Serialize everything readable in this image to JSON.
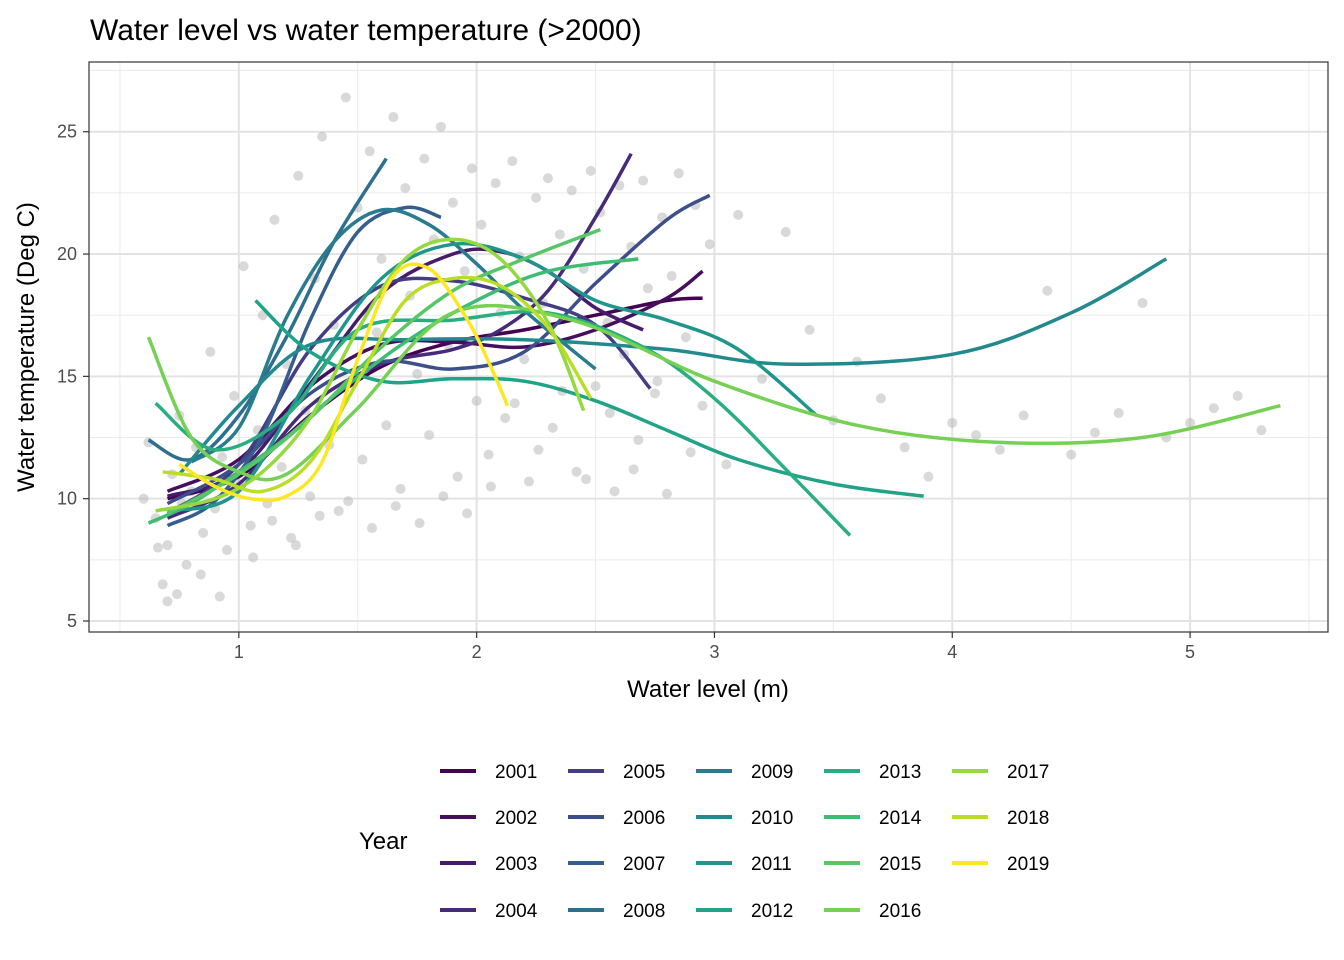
{
  "chart_data": {
    "type": "scatter",
    "title": "Water level vs water temperature (>2000)",
    "xlabel": "Water level (m)",
    "ylabel": "Water temperature (Deg C)",
    "xlim": [
      0.37,
      5.58
    ],
    "ylim": [
      4.55,
      27.85
    ],
    "x_ticks": [
      "1",
      "2",
      "3",
      "4",
      "5"
    ],
    "y_ticks": [
      "5",
      "10",
      "15",
      "20",
      "25"
    ],
    "grid": true,
    "legend_title": "Year",
    "legend_position": "bottom",
    "point_color": "#b3b3b3",
    "points": [
      [
        0.65,
        9.2
      ],
      [
        0.68,
        6.5
      ],
      [
        0.7,
        8.1
      ],
      [
        0.72,
        11.0
      ],
      [
        0.75,
        13.4
      ],
      [
        0.78,
        7.3
      ],
      [
        0.8,
        10.3
      ],
      [
        0.82,
        12.1
      ],
      [
        0.85,
        8.6
      ],
      [
        0.88,
        16.0
      ],
      [
        0.9,
        9.6
      ],
      [
        0.93,
        11.7
      ],
      [
        0.95,
        7.9
      ],
      [
        0.98,
        14.2
      ],
      [
        1.0,
        10.6
      ],
      [
        1.02,
        19.5
      ],
      [
        1.05,
        8.9
      ],
      [
        1.08,
        12.8
      ],
      [
        1.1,
        17.5
      ],
      [
        1.12,
        9.8
      ],
      [
        1.15,
        21.4
      ],
      [
        1.18,
        11.3
      ],
      [
        1.2,
        15.5
      ],
      [
        1.22,
        8.4
      ],
      [
        1.25,
        23.2
      ],
      [
        1.28,
        13.6
      ],
      [
        1.3,
        10.1
      ],
      [
        1.32,
        19.0
      ],
      [
        1.35,
        24.8
      ],
      [
        1.38,
        12.2
      ],
      [
        1.4,
        17.1
      ],
      [
        1.42,
        9.5
      ],
      [
        1.45,
        26.4
      ],
      [
        1.48,
        14.7
      ],
      [
        1.5,
        21.9
      ],
      [
        1.52,
        11.6
      ],
      [
        1.55,
        24.2
      ],
      [
        1.58,
        16.8
      ],
      [
        1.6,
        19.8
      ],
      [
        1.62,
        13.0
      ],
      [
        1.65,
        25.6
      ],
      [
        1.68,
        10.4
      ],
      [
        1.7,
        22.7
      ],
      [
        1.72,
        18.3
      ],
      [
        1.75,
        15.1
      ],
      [
        1.78,
        23.9
      ],
      [
        1.8,
        12.6
      ],
      [
        1.82,
        20.6
      ],
      [
        1.85,
        25.2
      ],
      [
        1.88,
        16.3
      ],
      [
        1.9,
        22.1
      ],
      [
        1.92,
        10.9
      ],
      [
        1.95,
        19.3
      ],
      [
        1.98,
        23.5
      ],
      [
        2.0,
        14.0
      ],
      [
        2.02,
        21.2
      ],
      [
        2.05,
        11.8
      ],
      [
        2.08,
        22.9
      ],
      [
        2.1,
        17.6
      ],
      [
        2.12,
        13.3
      ],
      [
        2.15,
        23.8
      ],
      [
        2.18,
        19.9
      ],
      [
        2.2,
        15.7
      ],
      [
        2.22,
        10.7
      ],
      [
        2.25,
        22.3
      ],
      [
        2.28,
        18.0
      ],
      [
        2.3,
        23.1
      ],
      [
        2.32,
        12.9
      ],
      [
        2.35,
        20.8
      ],
      [
        2.38,
        16.4
      ],
      [
        2.4,
        22.6
      ],
      [
        2.42,
        11.1
      ],
      [
        2.45,
        19.4
      ],
      [
        2.48,
        23.4
      ],
      [
        2.5,
        14.6
      ],
      [
        2.52,
        21.7
      ],
      [
        2.55,
        17.2
      ],
      [
        2.58,
        10.3
      ],
      [
        2.6,
        22.8
      ],
      [
        2.62,
        15.9
      ],
      [
        2.65,
        20.3
      ],
      [
        2.68,
        12.4
      ],
      [
        2.7,
        23.0
      ],
      [
        2.72,
        18.6
      ],
      [
        2.75,
        14.3
      ],
      [
        2.78,
        21.5
      ],
      [
        2.8,
        10.2
      ],
      [
        2.82,
        19.1
      ],
      [
        2.85,
        23.3
      ],
      [
        2.88,
        16.6
      ],
      [
        2.9,
        11.9
      ],
      [
        2.92,
        22.0
      ],
      [
        2.95,
        13.8
      ],
      [
        2.98,
        20.4
      ],
      [
        3.05,
        11.4
      ],
      [
        3.1,
        21.6
      ],
      [
        3.2,
        14.9
      ],
      [
        3.3,
        20.9
      ],
      [
        3.4,
        16.9
      ],
      [
        3.5,
        13.2
      ],
      [
        3.6,
        15.6
      ],
      [
        3.7,
        14.1
      ],
      [
        3.8,
        12.1
      ],
      [
        3.9,
        10.9
      ],
      [
        4.0,
        13.1
      ],
      [
        4.1,
        12.6
      ],
      [
        4.2,
        12.0
      ],
      [
        4.3,
        13.4
      ],
      [
        4.4,
        18.5
      ],
      [
        4.5,
        11.8
      ],
      [
        4.6,
        12.7
      ],
      [
        4.7,
        13.5
      ],
      [
        4.8,
        18.0
      ],
      [
        4.9,
        12.5
      ],
      [
        5.0,
        13.1
      ],
      [
        5.1,
        13.7
      ],
      [
        5.2,
        14.2
      ],
      [
        5.3,
        12.8
      ],
      [
        0.6,
        10.0
      ],
      [
        0.62,
        12.3
      ],
      [
        0.66,
        8.0
      ],
      [
        0.7,
        5.8
      ],
      [
        0.74,
        6.1
      ],
      [
        0.76,
        9.8
      ],
      [
        0.84,
        6.9
      ],
      [
        0.92,
        6.0
      ],
      [
        1.06,
        7.6
      ],
      [
        1.14,
        9.1
      ],
      [
        1.24,
        8.1
      ],
      [
        1.34,
        9.3
      ],
      [
        1.46,
        9.9
      ],
      [
        1.56,
        8.8
      ],
      [
        1.66,
        9.7
      ],
      [
        1.76,
        9.0
      ],
      [
        1.86,
        10.1
      ],
      [
        1.96,
        9.4
      ],
      [
        2.06,
        10.5
      ],
      [
        2.16,
        13.9
      ],
      [
        2.26,
        12.0
      ],
      [
        2.36,
        14.4
      ],
      [
        2.46,
        10.8
      ],
      [
        2.56,
        13.5
      ],
      [
        2.66,
        11.2
      ],
      [
        2.76,
        14.8
      ]
    ],
    "series": [
      {
        "name": "2001",
        "color": "#440154",
        "x": [
          0.7,
          1.0,
          1.3,
          1.6,
          1.9,
          2.2,
          2.5,
          2.8,
          2.95
        ],
        "y": [
          10.0,
          10.9,
          13.4,
          15.4,
          16.4,
          16.9,
          17.5,
          18.1,
          18.2
        ]
      },
      {
        "name": "2002",
        "color": "#450e5e",
        "x": [
          0.7,
          1.0,
          1.3,
          1.6,
          1.9,
          2.2,
          2.5,
          2.8,
          2.95
        ],
        "y": [
          10.3,
          11.6,
          14.6,
          16.3,
          16.4,
          16.2,
          16.9,
          18.2,
          19.3
        ]
      },
      {
        "name": "2003",
        "color": "#481a6c",
        "x": [
          0.7,
          1.0,
          1.3,
          1.6,
          1.9,
          2.1,
          2.3,
          2.5,
          2.7
        ],
        "y": [
          10.1,
          11.1,
          14.7,
          18.4,
          20.0,
          20.1,
          19.3,
          17.8,
          16.9
        ]
      },
      {
        "name": "2004",
        "color": "#472a7a",
        "x": [
          0.7,
          1.0,
          1.3,
          1.6,
          1.9,
          2.1,
          2.3,
          2.5,
          2.65
        ],
        "y": [
          9.2,
          10.6,
          13.8,
          15.5,
          16.1,
          16.9,
          18.5,
          21.5,
          24.1
        ]
      },
      {
        "name": "2005",
        "color": "#433d84",
        "x": [
          0.7,
          1.0,
          1.3,
          1.6,
          1.9,
          2.2,
          2.5,
          2.73
        ],
        "y": [
          9.4,
          11.4,
          16.1,
          18.7,
          18.9,
          18.2,
          17.1,
          14.5
        ]
      },
      {
        "name": "2006",
        "color": "#3c4f8a",
        "x": [
          0.7,
          1.0,
          1.3,
          1.6,
          1.9,
          2.2,
          2.5,
          2.8,
          2.98
        ],
        "y": [
          9.8,
          11.4,
          14.3,
          15.6,
          15.3,
          16.0,
          18.8,
          21.4,
          22.4
        ]
      },
      {
        "name": "2007",
        "color": "#355e8d",
        "x": [
          0.7,
          0.9,
          1.1,
          1.3,
          1.5,
          1.7,
          1.85
        ],
        "y": [
          8.9,
          9.9,
          12.6,
          17.3,
          20.9,
          21.9,
          21.5
        ]
      },
      {
        "name": "2008",
        "color": "#2e6f8e",
        "x": [
          0.62,
          0.8,
          1.0,
          1.2,
          1.4,
          1.62
        ],
        "y": [
          12.4,
          11.6,
          13.4,
          16.6,
          20.5,
          23.9
        ]
      },
      {
        "name": "2009",
        "color": "#297b8e",
        "x": [
          0.8,
          1.0,
          1.2,
          1.4,
          1.6,
          1.8,
          2.0,
          2.2,
          2.5
        ],
        "y": [
          11.5,
          12.9,
          17.4,
          20.5,
          21.8,
          21.2,
          19.6,
          17.7,
          15.3
        ]
      },
      {
        "name": "2010",
        "color": "#23898e",
        "x": [
          0.75,
          1.0,
          1.3,
          1.7,
          2.2,
          2.8,
          3.3,
          4.0,
          4.5,
          4.9
        ],
        "y": [
          11.0,
          13.8,
          16.3,
          16.5,
          16.5,
          16.1,
          15.5,
          15.9,
          17.6,
          19.8
        ]
      },
      {
        "name": "2011",
        "color": "#1f968b",
        "x": [
          0.7,
          1.0,
          1.3,
          1.6,
          1.9,
          2.2,
          2.5,
          2.8,
          3.1,
          3.43
        ],
        "y": [
          9.5,
          10.3,
          15.0,
          19.0,
          20.4,
          19.8,
          18.1,
          17.3,
          16.1,
          13.4
        ]
      },
      {
        "name": "2012",
        "color": "#20a386",
        "x": [
          1.07,
          1.3,
          1.6,
          1.9,
          2.2,
          2.5,
          2.8,
          3.1,
          3.5,
          3.88
        ],
        "y": [
          18.1,
          16.0,
          14.8,
          14.9,
          14.8,
          14.0,
          12.8,
          11.6,
          10.6,
          10.1
        ]
      },
      {
        "name": "2013",
        "color": "#29af7f",
        "x": [
          0.65,
          0.9,
          1.2,
          1.5,
          1.9,
          2.3,
          2.7,
          3.0,
          3.3,
          3.57
        ],
        "y": [
          13.9,
          12.0,
          13.4,
          16.9,
          17.3,
          17.6,
          16.2,
          14.1,
          11.2,
          8.5
        ]
      },
      {
        "name": "2014",
        "color": "#3dbc74",
        "x": [
          0.62,
          0.8,
          1.0,
          1.2,
          1.4,
          1.7,
          2.0,
          2.3,
          2.68
        ],
        "y": [
          9.0,
          9.8,
          11.1,
          12.5,
          14.2,
          16.4,
          18.1,
          19.3,
          19.8
        ]
      },
      {
        "name": "2015",
        "color": "#56c667",
        "x": [
          0.7,
          1.0,
          1.3,
          1.6,
          1.9,
          2.2,
          2.52
        ],
        "y": [
          9.4,
          11.0,
          13.3,
          16.2,
          18.5,
          19.8,
          21.0
        ]
      },
      {
        "name": "2016",
        "color": "#75d054",
        "x": [
          0.62,
          0.8,
          1.0,
          1.2,
          1.5,
          1.9,
          2.4,
          3.0,
          3.6,
          4.2,
          4.8,
          5.38
        ],
        "y": [
          16.6,
          12.5,
          11.1,
          11.0,
          13.7,
          17.6,
          17.3,
          14.8,
          13.0,
          12.3,
          12.5,
          13.8
        ]
      },
      {
        "name": "2017",
        "color": "#95d840",
        "x": [
          0.65,
          0.9,
          1.1,
          1.3,
          1.5,
          1.7,
          1.9,
          2.1,
          2.3,
          2.45
        ],
        "y": [
          9.5,
          10.0,
          11.1,
          13.3,
          16.9,
          19.8,
          20.6,
          19.8,
          17.2,
          13.6
        ]
      },
      {
        "name": "2018",
        "color": "#bade28",
        "x": [
          0.68,
          0.9,
          1.1,
          1.3,
          1.5,
          1.7,
          1.9,
          2.1,
          2.3,
          2.48
        ],
        "y": [
          11.1,
          10.8,
          10.3,
          11.5,
          14.8,
          18.1,
          19.0,
          18.7,
          17.0,
          14.1
        ]
      },
      {
        "name": "2019",
        "color": "#fde725",
        "x": [
          0.75,
          0.9,
          1.05,
          1.2,
          1.35,
          1.5,
          1.65,
          1.8,
          1.95,
          2.05,
          2.13
        ],
        "y": [
          11.4,
          10.5,
          10.0,
          10.1,
          11.5,
          15.7,
          19.1,
          19.4,
          17.5,
          15.6,
          13.8
        ]
      }
    ]
  }
}
